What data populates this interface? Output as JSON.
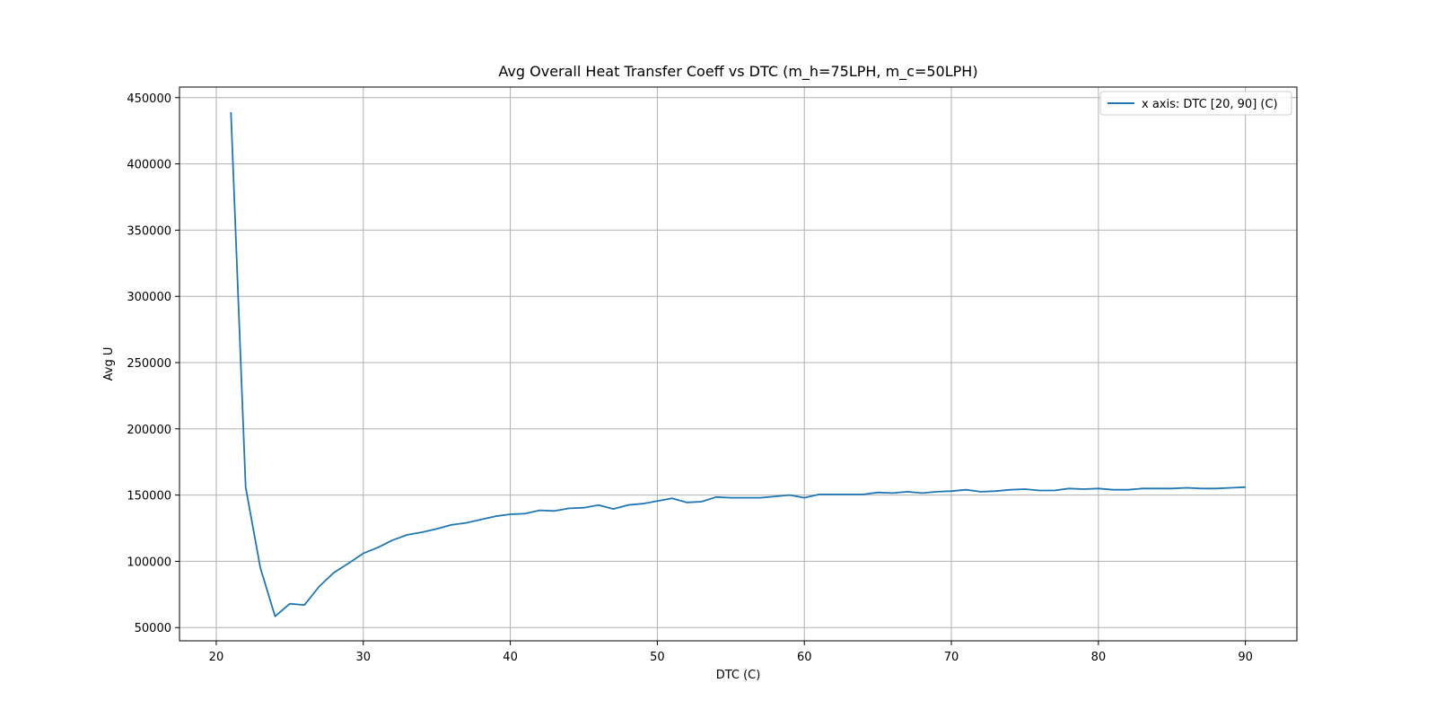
{
  "chart_data": {
    "type": "line",
    "title": "Avg Overall Heat Transfer Coeff vs DTC (m_h=75LPH, m_c=50LPH)",
    "xlabel": "DTC (C)",
    "ylabel": "Avg U",
    "xlim": [
      17.5,
      93.5
    ],
    "ylim": [
      40000,
      458000
    ],
    "xticks": [
      20,
      30,
      40,
      50,
      60,
      70,
      80,
      90
    ],
    "yticks": [
      50000,
      100000,
      150000,
      200000,
      250000,
      300000,
      350000,
      400000,
      450000
    ],
    "grid": true,
    "legend_position": "top-right",
    "line_color": "#1f77b4",
    "series": [
      {
        "name": "x axis: DTC [20, 90] (C)",
        "x": [
          21,
          22,
          23,
          24,
          25,
          26,
          27,
          28,
          29,
          30,
          31,
          32,
          33,
          34,
          35,
          36,
          37,
          38,
          39,
          40,
          41,
          42,
          43,
          44,
          45,
          46,
          47,
          48,
          49,
          50,
          51,
          52,
          53,
          54,
          55,
          56,
          57,
          58,
          59,
          60,
          61,
          62,
          63,
          64,
          65,
          66,
          67,
          68,
          69,
          70,
          71,
          72,
          73,
          74,
          75,
          76,
          77,
          78,
          79,
          80,
          81,
          82,
          83,
          84,
          85,
          86,
          87,
          88,
          89,
          90
        ],
        "y": [
          439000,
          156000,
          95000,
          58500,
          68000,
          67000,
          81000,
          91500,
          98500,
          106000,
          110500,
          116000,
          120000,
          122000,
          124500,
          127500,
          129000,
          131500,
          134000,
          135500,
          136000,
          138500,
          138000,
          140000,
          140500,
          142500,
          139500,
          142500,
          143500,
          145500,
          147500,
          144500,
          145000,
          148500,
          148000,
          148000,
          148000,
          149000,
          150000,
          148000,
          150500,
          150500,
          150500,
          150500,
          152000,
          151500,
          152500,
          151500,
          152500,
          153000,
          154000,
          152500,
          153000,
          154000,
          154500,
          153500,
          153500,
          155000,
          154500,
          155000,
          154000,
          154000,
          155000,
          155000,
          155000,
          155500,
          155000,
          155000,
          155500,
          156000
        ]
      }
    ]
  }
}
